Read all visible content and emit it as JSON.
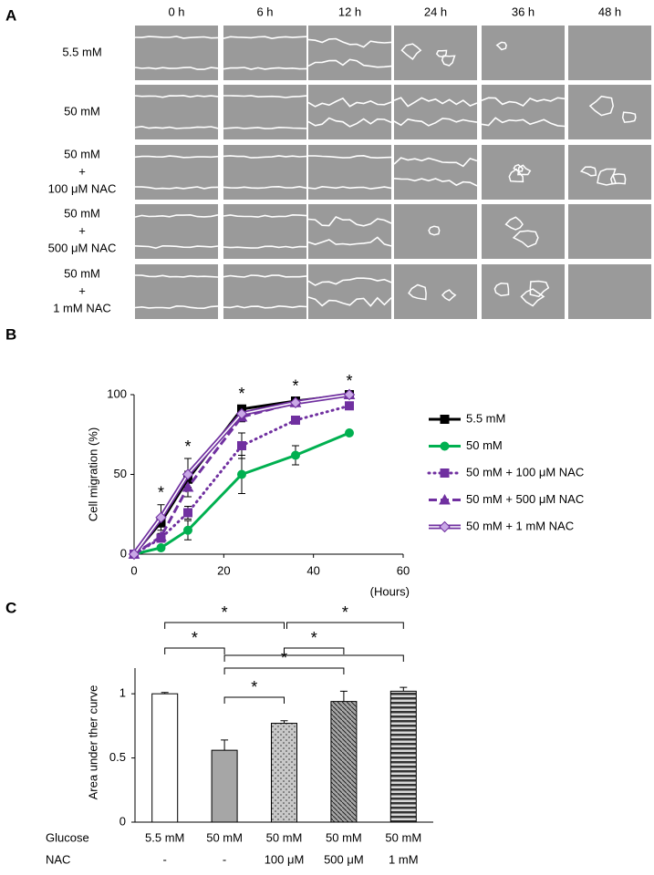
{
  "panel_a": {
    "label": "A",
    "columns": [
      "0 h",
      "6 h",
      "12 h",
      "24 h",
      "36 h",
      "48 h"
    ],
    "rows": [
      [
        "5.5 mM"
      ],
      [
        "50 mM"
      ],
      [
        "50 mM",
        "+",
        "100 μM NAC"
      ],
      [
        "50 mM",
        "+",
        "500 μM NAC"
      ],
      [
        "50 mM",
        "+",
        "1 mM NAC"
      ]
    ]
  },
  "chart_data": [
    {
      "type": "line",
      "label": "B",
      "x_label": "(Hours)",
      "y_label": "Cell migration (%)",
      "x": [
        0,
        6,
        12,
        24,
        36,
        48
      ],
      "xlim": [
        0,
        60
      ],
      "xticks": [
        0,
        20,
        40,
        60
      ],
      "ylim": [
        0,
        100
      ],
      "yticks": [
        0,
        50,
        100
      ],
      "series": [
        {
          "name": "5.5 mM",
          "color": "#000000",
          "line_style": "solid",
          "marker": "square",
          "values": [
            0,
            20,
            47,
            91,
            96,
            100
          ],
          "errors": [
            0,
            3,
            5,
            2,
            2,
            1
          ]
        },
        {
          "name": "50 mM",
          "color": "#00b050",
          "line_style": "solid",
          "marker": "circle",
          "values": [
            0,
            4,
            15,
            50,
            62,
            76
          ],
          "errors": [
            0,
            1,
            6,
            12,
            6,
            1
          ]
        },
        {
          "name": "50 mM + 100 μM NAC",
          "color": "#7030a0",
          "line_style": "dotted",
          "marker": "square",
          "values": [
            0,
            10,
            26,
            68,
            84,
            93
          ],
          "errors": [
            0,
            2,
            4,
            8,
            2,
            1
          ]
        },
        {
          "name": "50 mM + 500 μM NAC",
          "color": "#7030a0",
          "line_style": "dashed",
          "marker": "triangle",
          "values": [
            0,
            11,
            42,
            86,
            95,
            100
          ],
          "errors": [
            0,
            2,
            6,
            3,
            1,
            1
          ]
        },
        {
          "name": "50 mM + 1 mM NAC",
          "color": "#7030a0",
          "line_style": "double",
          "marker": "diamond",
          "values": [
            0,
            23,
            50,
            88,
            95,
            100
          ],
          "errors": [
            0,
            8,
            10,
            3,
            2,
            1
          ]
        }
      ],
      "significance": {
        "x": [
          6,
          12,
          24,
          36,
          48
        ],
        "label": "*"
      }
    },
    {
      "type": "bar",
      "label": "C",
      "y_label": "Area under ther curve",
      "row_labels": [
        "Glucose",
        "NAC"
      ],
      "categories": [
        "5.5 mM",
        "50 mM",
        "50 mM",
        "50 mM",
        "50 mM"
      ],
      "nac": [
        "-",
        "-",
        "100 μM",
        "500 μM",
        "1 mM"
      ],
      "values": [
        1.0,
        0.56,
        0.77,
        0.94,
        1.02
      ],
      "errors": [
        0.01,
        0.08,
        0.02,
        0.08,
        0.03
      ],
      "colors": [
        "#ffffff",
        "#a6a6a6",
        "#c8c8c8",
        "#a6a6a6",
        "#a6a6a6"
      ],
      "ylim": [
        0,
        1.2
      ],
      "yticks": [
        0,
        0.5,
        1
      ],
      "brackets": [
        {
          "from": 0,
          "to": 2,
          "label": "*"
        },
        {
          "from": 2,
          "to": 4,
          "label": "*"
        },
        {
          "from": 0,
          "to": 1,
          "label": "*"
        },
        {
          "from": 2,
          "to": 3,
          "label": "*"
        },
        {
          "from": 1,
          "to": 4
        },
        {
          "from": 1,
          "to": 3,
          "label": "*"
        },
        {
          "from": 1,
          "to": 2,
          "label": "*"
        }
      ]
    }
  ]
}
